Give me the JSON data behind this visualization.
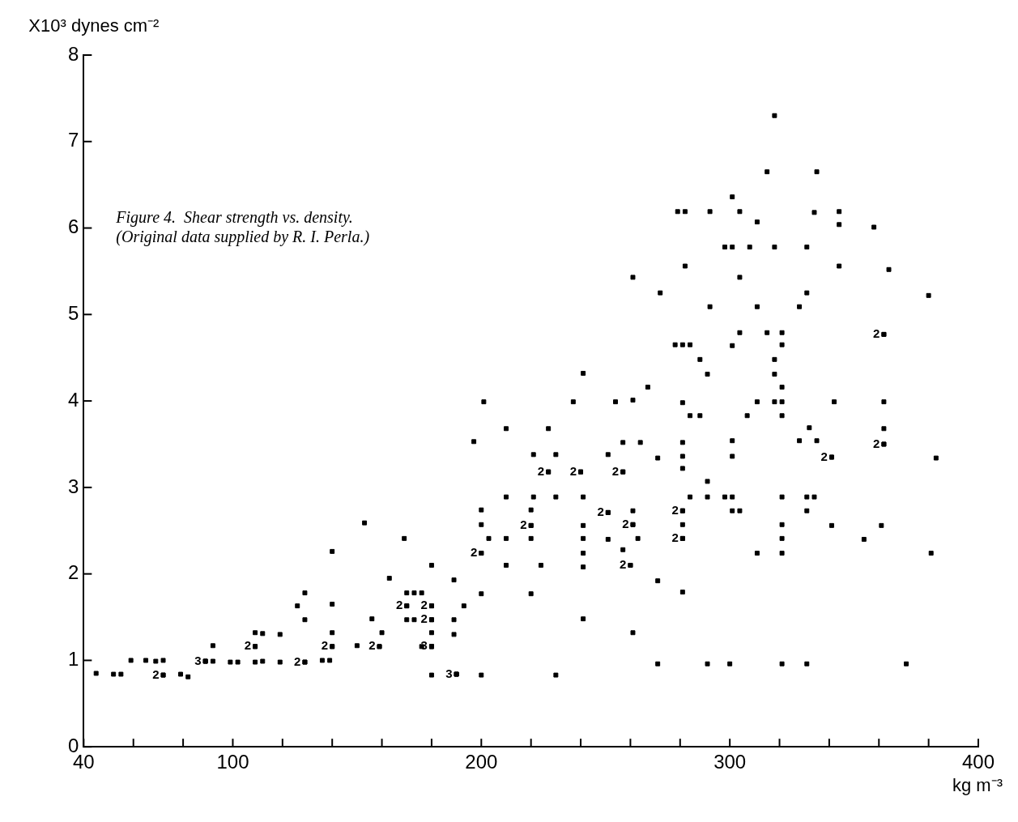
{
  "chart_data": {
    "type": "scatter",
    "xlabel": "kg m⁻³",
    "ylabel": "X10³ dynes cm⁻²",
    "marker": "square",
    "xlim": [
      40,
      400
    ],
    "ylim": [
      0,
      8
    ],
    "xticks": [
      40,
      {
        "value": 60,
        "label": null
      },
      {
        "value": 80,
        "label": null
      },
      100,
      {
        "value": 120,
        "label": null
      },
      {
        "value": 140,
        "label": null
      },
      {
        "value": 160,
        "label": null
      },
      {
        "value": 180,
        "label": null
      },
      200,
      {
        "value": 220,
        "label": null
      },
      {
        "value": 240,
        "label": null
      },
      {
        "value": 260,
        "label": null
      },
      {
        "value": 280,
        "label": null
      },
      300,
      {
        "value": 320,
        "label": null
      },
      {
        "value": 340,
        "label": null
      },
      {
        "value": 360,
        "label": null
      },
      {
        "value": 380,
        "label": null
      },
      400
    ],
    "yticks": [
      0,
      1,
      2,
      3,
      4,
      5,
      6,
      7,
      8
    ],
    "series": [
      {
        "color": "#000000",
        "x": [
          45,
          52,
          55,
          59,
          65,
          69,
          72,
          79,
          82,
          92,
          92,
          99,
          102,
          109,
          112,
          109,
          112,
          119,
          119,
          126,
          129,
          129,
          136,
          139,
          140,
          140,
          140,
          150,
          156,
          160,
          153,
          163,
          169,
          170,
          173,
          176,
          170,
          173,
          180,
          176,
          180,
          180,
          189,
          189,
          189,
          193,
          200,
          200,
          200,
          200,
          203,
          210,
          220,
          220,
          210,
          224,
          220,
          230,
          278,
          281,
          284,
          241,
          267,
          201,
          237,
          254,
          261,
          281,
          284,
          210,
          227,
          197,
          257,
          264,
          281,
          221,
          230,
          251,
          271,
          281,
          281,
          210,
          221,
          230,
          241,
          284,
          261,
          281,
          241,
          241,
          251,
          263,
          241,
          257,
          241,
          271,
          281,
          241,
          261,
          304,
          315,
          321,
          321,
          301,
          288,
          291,
          318,
          318,
          321,
          311,
          318,
          321,
          342,
          362,
          288,
          307,
          321,
          332,
          362,
          301,
          301,
          328,
          335,
          383,
          291,
          291,
          298,
          301,
          321,
          331,
          334,
          301,
          304,
          331,
          321,
          321,
          311,
          321,
          341,
          361,
          354,
          381,
          291,
          300,
          321,
          331,
          371,
          271,
          318,
          315,
          335,
          301,
          279,
          282,
          292,
          304,
          334,
          344,
          344,
          311,
          358,
          298,
          301,
          308,
          318,
          331,
          282,
          344,
          364,
          304,
          272,
          331,
          380,
          292,
          311,
          328,
          261,
          72,
          72,
          89,
          89,
          89,
          109,
          109,
          129,
          129,
          140,
          140,
          159,
          159,
          170,
          170,
          180,
          180,
          180,
          180,
          180,
          180,
          180,
          190,
          190,
          190,
          200,
          200,
          220,
          220,
          227,
          227,
          240,
          240,
          257,
          257,
          251,
          251,
          261,
          261,
          281,
          281,
          281,
          281,
          260,
          260,
          362,
          362,
          362,
          362,
          341,
          341
        ],
        "values": [
          0.85,
          0.84,
          0.84,
          1.0,
          1.0,
          0.99,
          1.0,
          0.84,
          0.81,
          0.99,
          1.17,
          0.98,
          0.98,
          0.98,
          0.99,
          1.32,
          1.31,
          1.3,
          0.98,
          1.63,
          1.78,
          1.47,
          1.0,
          1.0,
          1.32,
          1.65,
          2.26,
          1.17,
          1.48,
          1.32,
          2.59,
          1.95,
          2.41,
          1.78,
          1.78,
          1.78,
          1.47,
          1.47,
          1.32,
          1.16,
          2.1,
          0.83,
          1.93,
          1.47,
          1.3,
          1.63,
          0.83,
          1.77,
          2.57,
          2.74,
          2.41,
          2.41,
          2.41,
          2.74,
          2.1,
          2.1,
          1.77,
          0.83,
          4.65,
          4.65,
          4.65,
          4.32,
          4.16,
          3.99,
          3.99,
          3.99,
          4.01,
          3.98,
          3.83,
          3.68,
          3.68,
          3.53,
          3.52,
          3.52,
          3.52,
          3.38,
          3.38,
          3.38,
          3.34,
          3.36,
          3.22,
          2.89,
          2.89,
          2.89,
          2.89,
          2.89,
          2.73,
          2.57,
          2.56,
          2.41,
          2.4,
          2.41,
          2.24,
          2.28,
          2.08,
          1.92,
          1.79,
          1.48,
          1.32,
          4.79,
          4.79,
          4.79,
          4.65,
          4.64,
          4.48,
          4.31,
          4.48,
          4.31,
          4.16,
          3.99,
          3.99,
          3.99,
          3.99,
          3.99,
          3.83,
          3.83,
          3.83,
          3.69,
          3.68,
          3.54,
          3.36,
          3.54,
          3.54,
          3.34,
          3.07,
          2.89,
          2.89,
          2.89,
          2.89,
          2.89,
          2.89,
          2.73,
          2.73,
          2.73,
          2.57,
          2.41,
          2.24,
          2.24,
          2.56,
          2.56,
          2.4,
          2.24,
          0.96,
          0.96,
          0.96,
          0.96,
          0.96,
          0.96,
          7.3,
          6.65,
          6.65,
          6.36,
          6.19,
          6.19,
          6.19,
          6.19,
          6.18,
          6.19,
          6.04,
          6.07,
          6.01,
          5.78,
          5.78,
          5.78,
          5.78,
          5.78,
          5.56,
          5.56,
          5.52,
          5.43,
          5.25,
          5.25,
          5.22,
          5.09,
          5.09,
          5.09,
          5.43,
          0.83,
          0.83,
          0.99,
          0.99,
          0.99,
          1.16,
          1.16,
          0.98,
          0.98,
          1.16,
          1.16,
          1.16,
          1.16,
          1.63,
          1.63,
          1.63,
          1.63,
          1.47,
          1.47,
          1.16,
          1.16,
          1.16,
          0.84,
          0.84,
          0.84,
          2.24,
          2.24,
          2.56,
          2.56,
          3.18,
          3.18,
          3.18,
          3.18,
          3.18,
          3.18,
          2.71,
          2.71,
          2.57,
          2.57,
          2.73,
          2.73,
          2.41,
          2.41,
          2.1,
          2.1,
          4.77,
          4.77,
          3.5,
          3.5,
          3.35,
          3.35
        ]
      }
    ],
    "annotations": [
      "Figure 4.  Shear strength vs. density.",
      "(Original data supplied by R. I. Perla.)",
      {
        "text": "2",
        "x": 72,
        "y": 0.83
      },
      {
        "text": "3",
        "x": 89,
        "y": 0.99
      },
      {
        "text": "2",
        "x": 109,
        "y": 1.16
      },
      {
        "text": "2",
        "x": 129,
        "y": 0.98
      },
      {
        "text": "2",
        "x": 140,
        "y": 1.16
      },
      {
        "text": "2",
        "x": 159,
        "y": 1.16
      },
      {
        "text": "2",
        "x": 170,
        "y": 1.63
      },
      {
        "text": "2",
        "x": 180,
        "y": 1.63
      },
      {
        "text": "2",
        "x": 180,
        "y": 1.47
      },
      {
        "text": "3",
        "x": 180,
        "y": 1.16
      },
      {
        "text": "3",
        "x": 190,
        "y": 0.84
      },
      {
        "text": "2",
        "x": 200,
        "y": 2.24
      },
      {
        "text": "2",
        "x": 220,
        "y": 2.56
      },
      {
        "text": "2",
        "x": 227,
        "y": 3.18
      },
      {
        "text": "2",
        "x": 240,
        "y": 3.18
      },
      {
        "text": "2",
        "x": 257,
        "y": 3.18
      },
      {
        "text": "2",
        "x": 251,
        "y": 2.71
      },
      {
        "text": "2",
        "x": 261,
        "y": 2.57
      },
      {
        "text": "2",
        "x": 281,
        "y": 2.73
      },
      {
        "text": "2",
        "x": 281,
        "y": 2.41
      },
      {
        "text": "2",
        "x": 260,
        "y": 2.1
      },
      {
        "text": "2",
        "x": 362,
        "y": 4.77
      },
      {
        "text": "2",
        "x": 362,
        "y": 3.5
      },
      {
        "text": "2",
        "x": 341,
        "y": 3.35
      }
    ]
  }
}
